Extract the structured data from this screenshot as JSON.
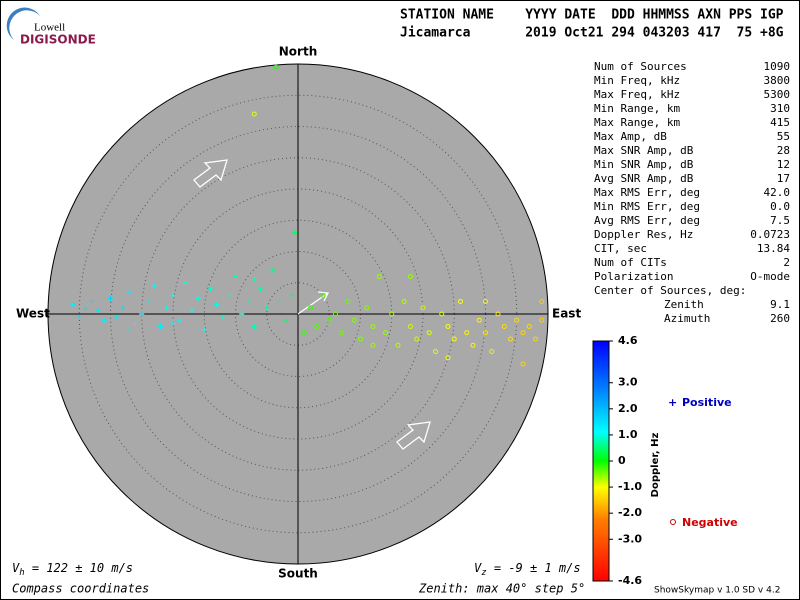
{
  "logo": {
    "top": "Lowell",
    "bottom": "DIGISONDE"
  },
  "header": {
    "line1": "STATION NAME    YYYY DATE  DDD HHMMSS AXN PPS IGP",
    "line2": "Jicamarca       2019 Oct21 294 043203 417  75 +8G"
  },
  "stats": [
    {
      "label": "Num of Sources",
      "value": "1090"
    },
    {
      "label": "Min Freq, kHz",
      "value": "3800"
    },
    {
      "label": "Max Freq, kHz",
      "value": "5300"
    },
    {
      "label": "Min Range, km",
      "value": "310"
    },
    {
      "label": "Max Range, km",
      "value": "415"
    },
    {
      "label": "Max Amp, dB",
      "value": "55"
    },
    {
      "label": "Max SNR Amp, dB",
      "value": "28"
    },
    {
      "label": "Min SNR Amp, dB",
      "value": "12"
    },
    {
      "label": "Avg SNR Amp, dB",
      "value": "17"
    },
    {
      "label": "Max RMS Err, deg",
      "value": "42.0"
    },
    {
      "label": "Min RMS Err, deg",
      "value": "0.0"
    },
    {
      "label": "Avg RMS Err, deg",
      "value": "7.5"
    },
    {
      "label": "Doppler Res, Hz",
      "value": "0.0723"
    },
    {
      "label": "CIT, sec",
      "value": "13.84"
    },
    {
      "label": "Num of CITs",
      "value": "2"
    },
    {
      "label": "Polarization",
      "value": "O-mode"
    }
  ],
  "center": {
    "title": "Center of Sources, deg:",
    "rows": [
      {
        "label": "Zenith",
        "value": "9.1"
      },
      {
        "label": "Azimuth",
        "value": "260"
      }
    ]
  },
  "footer": {
    "vh_symbol": "V",
    "vh_sub": "h",
    "vh_text": " = 122 ± 10 m/s",
    "vz_symbol": "V",
    "vz_sub": "z",
    "vz_text": " = -9 ± 1 m/s",
    "coords": "Compass coordinates",
    "zenith": "Zenith: max 40°  step 5°",
    "version": "ShowSkymap v 1.0  SD v 4.2"
  },
  "chart_data": {
    "type": "skymap",
    "compass": {
      "north": "North",
      "south": "South",
      "west": "West",
      "east": "East"
    },
    "rlim": [
      0,
      40
    ],
    "rticks": [
      5,
      10,
      15,
      20,
      25,
      30,
      35
    ],
    "colorbar": {
      "label": "Doppler, Hz",
      "lim": [
        -4.6,
        4.6
      ],
      "ticks": [
        4.6,
        {
          "value": 3,
          "label": "3.0"
        },
        {
          "value": 2,
          "label": "2.0"
        },
        {
          "value": 1,
          "label": "1.0"
        },
        0,
        {
          "value": -1,
          "label": "-1.0"
        },
        {
          "value": -2,
          "label": "-2.0"
        },
        {
          "value": -3,
          "label": "-3.0"
        },
        -4.6
      ]
    },
    "series": [
      {
        "name": "Positive",
        "color": "#0000c0",
        "marker": "cross",
        "x": [
          -36,
          -35,
          -33,
          -32,
          -31,
          -30,
          -29,
          -28,
          -27,
          -26,
          -25,
          -24,
          -23,
          -22,
          -21,
          -20,
          -19,
          -18,
          -17,
          -16,
          -15,
          -14,
          -13,
          -12,
          -11,
          -10,
          -9,
          -8,
          -7,
          -6,
          -5,
          -4,
          -3,
          -2,
          -1,
          -7,
          -0.5,
          -20,
          -34,
          -27
        ],
        "y": [
          1.5,
          -0.5,
          2,
          0.5,
          -1,
          2.5,
          -0.5,
          1,
          3.5,
          -1.5,
          0,
          2,
          4.5,
          -2,
          1,
          3,
          -1,
          5,
          0.5,
          2.5,
          -2.5,
          4,
          1.5,
          -0.5,
          3,
          6,
          0,
          2,
          -2,
          4,
          1,
          7,
          2,
          -1,
          3,
          5.5,
          13,
          -1.5,
          0.8,
          -2.5
        ],
        "doppler": [
          1.3,
          1.4,
          1.5,
          1.4,
          1.3,
          1.6,
          1.4,
          1.5,
          1.3,
          1.2,
          1.4,
          1.3,
          1.2,
          1.3,
          1.2,
          1.1,
          1.2,
          1,
          1.1,
          1,
          1.1,
          0.9,
          1,
          0.9,
          0.9,
          0.8,
          0.9,
          0.8,
          0.8,
          0.7,
          0.7,
          0.6,
          0.6,
          0.5,
          0.5,
          0.8,
          0.4,
          1.2,
          1.5,
          1.3
        ]
      },
      {
        "name": "Negative",
        "color": "#d00000",
        "marker": "circle",
        "x": [
          1,
          2,
          3,
          4,
          5,
          6,
          7,
          8,
          9,
          10,
          11,
          12,
          13,
          14,
          15,
          16,
          17,
          18,
          19,
          20,
          21,
          22,
          23,
          24,
          25,
          26,
          27,
          28,
          29,
          30,
          31,
          32,
          33,
          34,
          35,
          36,
          37,
          38,
          39,
          24,
          18,
          30,
          12,
          36,
          39,
          -3.5,
          -7
        ],
        "y": [
          -3,
          1,
          -2,
          3,
          -1,
          0,
          -3,
          2,
          -1,
          -4,
          1,
          -2,
          6,
          -3,
          0,
          -5,
          2,
          -2,
          -4,
          1,
          -3,
          -6,
          0,
          -2,
          -4,
          2,
          -3,
          -5,
          -1,
          -3,
          -6,
          0,
          -2,
          -4,
          -1,
          -3,
          -2,
          -4,
          -1,
          -7,
          6,
          2,
          -5,
          -8,
          2,
          39.5,
          32
        ],
        "doppler": [
          -0.2,
          -0.2,
          -0.3,
          -0.3,
          -0.3,
          -0.4,
          -0.4,
          -0.4,
          -0.5,
          -0.5,
          -0.5,
          -0.6,
          -0.6,
          -0.6,
          -0.7,
          -0.7,
          -0.7,
          -0.8,
          -0.8,
          -0.8,
          -0.9,
          -0.9,
          -0.9,
          -1,
          -1,
          -1,
          -1.1,
          -1.1,
          -1.1,
          -1.2,
          -1.2,
          -1.2,
          -1.3,
          -1.3,
          -1.3,
          -1.4,
          -1.4,
          -1.4,
          -1.5,
          -1,
          -0.6,
          -1.1,
          -0.6,
          -1.4,
          -1.5,
          -0.1,
          -0.9
        ]
      }
    ]
  }
}
